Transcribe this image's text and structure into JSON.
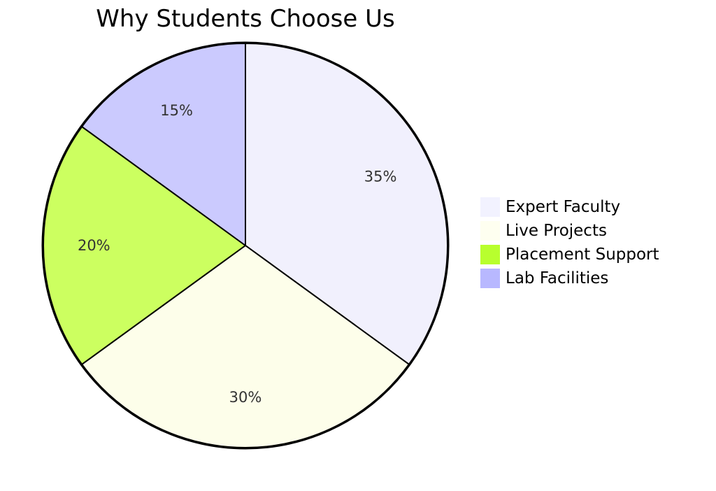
{
  "chart_data": {
    "type": "pie",
    "title": "Why Students Choose Us",
    "slices": [
      {
        "label": "Expert Faculty",
        "value": 35,
        "display": "35%",
        "color": "#f1f0fd"
      },
      {
        "label": "Live Projects",
        "value": 30,
        "display": "30%",
        "color": "#fdfeea"
      },
      {
        "label": "Placement Support",
        "value": 20,
        "display": "20%",
        "color": "#ccff60"
      },
      {
        "label": "Lab Facilities",
        "value": 15,
        "display": "15%",
        "color": "#cbcafe"
      }
    ],
    "legend_placement": "right",
    "legend_colors": [
      "#f2f2ff",
      "#fefff0",
      "#b8ff2e",
      "#b8b8ff"
    ],
    "start": "top",
    "direction": "clockwise",
    "outline_color": "#000000"
  }
}
